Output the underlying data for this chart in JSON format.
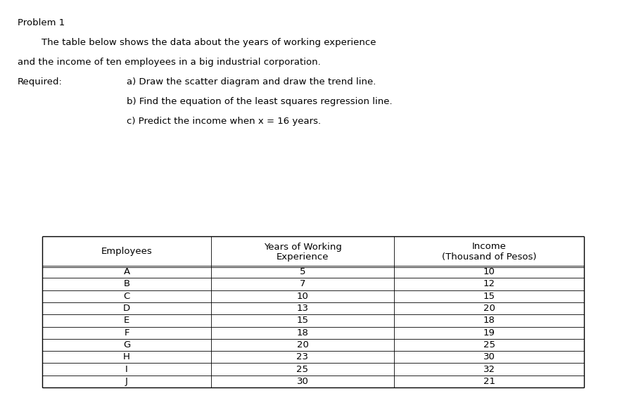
{
  "title_line1": "Problem 1",
  "title_line2": "        The table below shows the data about the years of working experience",
  "title_line3": "and the income of ten employees in a big industrial corporation.",
  "required_label": "Required:",
  "req_a": "a) Draw the scatter diagram and draw the trend line.",
  "req_b": "b) Find the equation of the least squares regression line.",
  "req_c": "c) Predict the income when x = 16 years.",
  "col1_header": "Employees",
  "col2_header_line1": "Years of Working",
  "col2_header_line2": "Experience",
  "col3_header_line1": "Income",
  "col3_header_line2": "(Thousand of Pesos)",
  "employees": [
    "A",
    "B",
    "C",
    "D",
    "E",
    "F",
    "G",
    "H",
    "I",
    "J"
  ],
  "years": [
    5,
    7,
    10,
    13,
    15,
    18,
    20,
    23,
    25,
    30
  ],
  "income": [
    10,
    12,
    15,
    20,
    18,
    19,
    25,
    30,
    32,
    21
  ],
  "text_color": "#000000",
  "table_border_color": "#000000",
  "font_size": 9.5,
  "req_indent": 0.175
}
